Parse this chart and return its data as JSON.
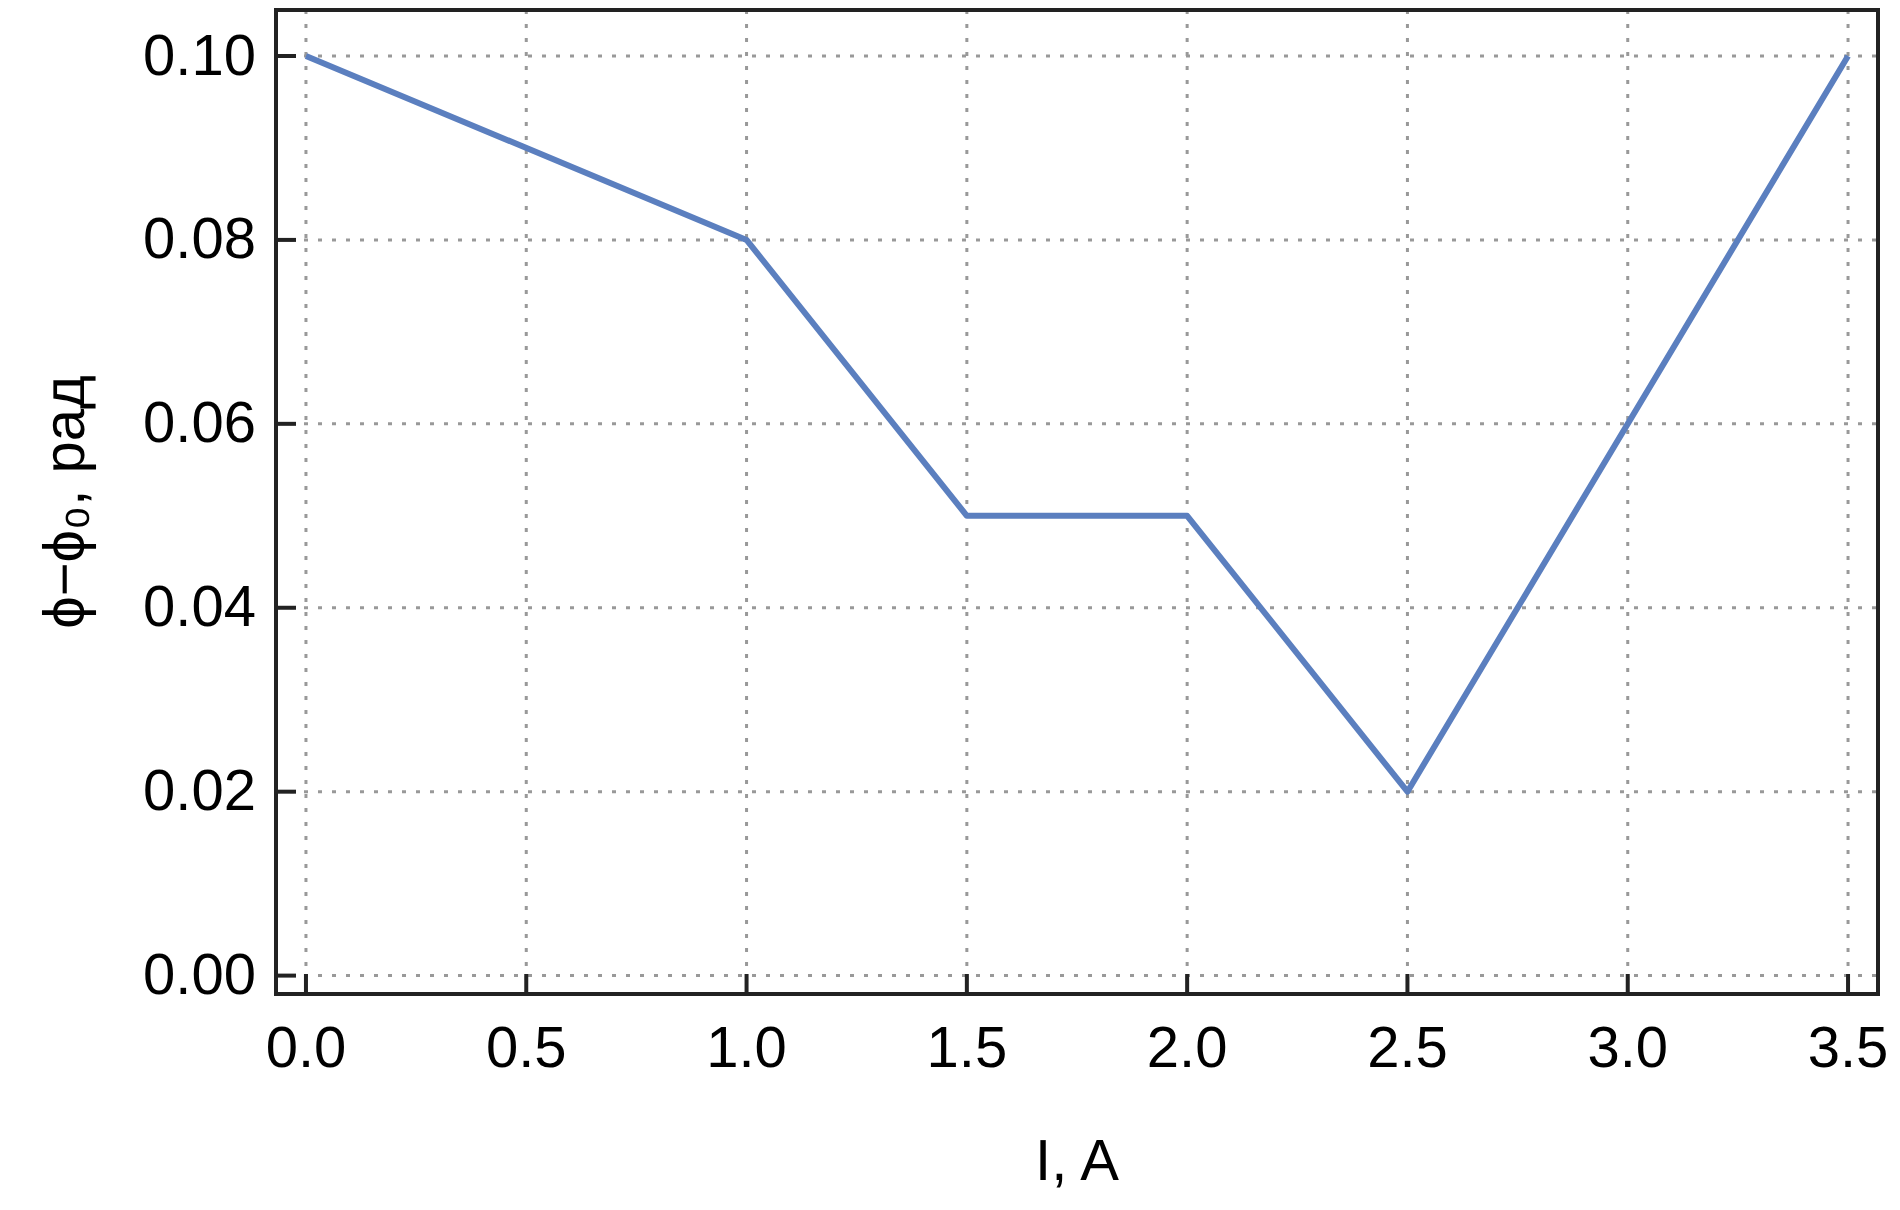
{
  "chart_data": {
    "type": "line",
    "xlabel": "I, A",
    "ylabel": "ϕ−ϕ₀, рад",
    "x": [
      0,
      1,
      1.5,
      2,
      2.5,
      3.5
    ],
    "series": [
      {
        "color": "#5b7fbf",
        "values": [
          0.1,
          0.08,
          0.05,
          0.05,
          0.02,
          0.1
        ]
      }
    ],
    "xlim": [
      -0.068,
      3.568
    ],
    "ylim": [
      -0.002,
      0.105
    ],
    "xticks": [
      {
        "value": 0,
        "label": "0.0"
      },
      0.5,
      {
        "value": 1,
        "label": "1.0"
      },
      1.5,
      {
        "value": 2,
        "label": "2.0"
      },
      2.5,
      {
        "value": 3,
        "label": "3.0"
      },
      3.5
    ],
    "yticks": [
      {
        "value": 0,
        "label": "0.00"
      },
      0.02,
      0.04,
      0.06,
      0.08,
      {
        "value": 0.1,
        "label": "0.10"
      }
    ],
    "grid": true,
    "line_style": "solid",
    "marker": "none"
  }
}
